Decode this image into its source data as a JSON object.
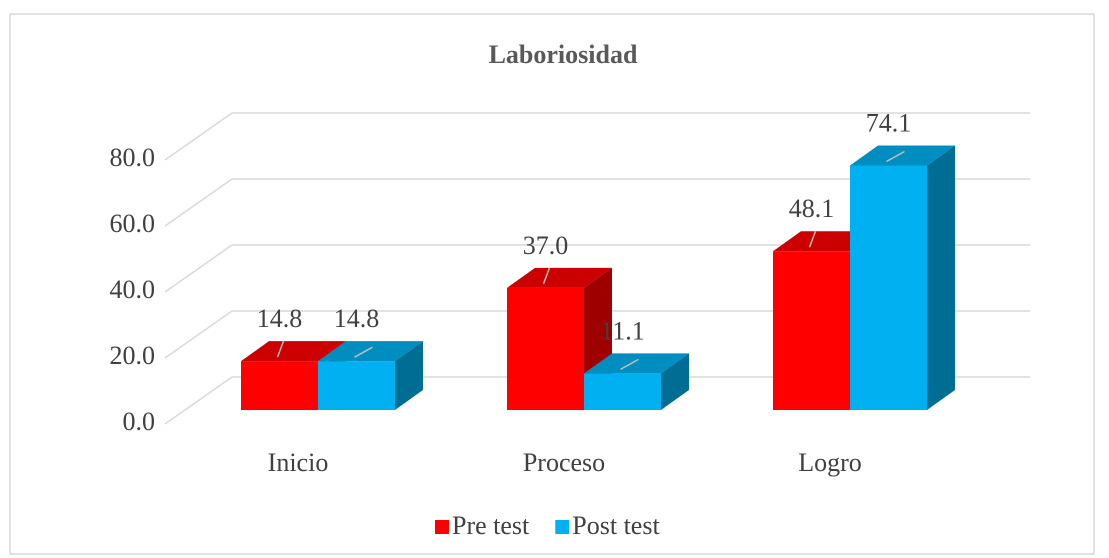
{
  "chart_data": {
    "type": "bar3d",
    "title": "Laboriosidad",
    "categories": [
      "Inicio",
      "Proceso",
      "Logro"
    ],
    "series": [
      {
        "name": "Pre test",
        "color": "#ff0000",
        "values": [
          14.8,
          37.0,
          48.1
        ],
        "value_labels": [
          "14.8",
          "37.0",
          "48.1"
        ]
      },
      {
        "name": "Post test",
        "color": "#00b0f0",
        "values": [
          14.8,
          11.1,
          74.1
        ],
        "value_labels": [
          "14.8",
          "11.1",
          "74.1"
        ]
      }
    ],
    "ylim": [
      0,
      80
    ],
    "yticks": [
      {
        "value": 0,
        "label": "0.0"
      },
      {
        "value": 20,
        "label": "20.0"
      },
      {
        "value": 40,
        "label": "40.0"
      },
      {
        "value": 60,
        "label": "60.0"
      },
      {
        "value": 80,
        "label": "80.0"
      }
    ],
    "grid": true,
    "legend": "bottom"
  }
}
